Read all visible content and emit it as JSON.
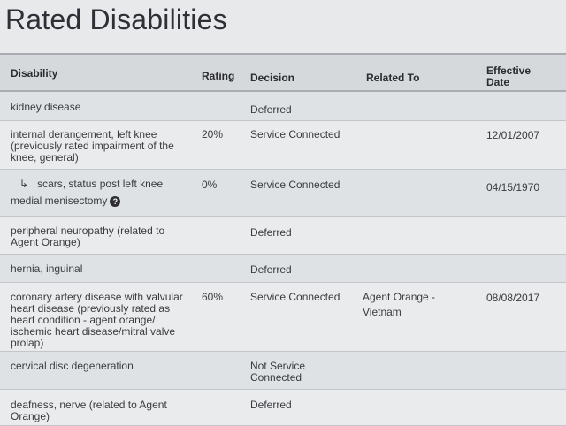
{
  "page_title": "Rated Disabilities",
  "table": {
    "headers": {
      "disability": "Disability",
      "rating": "Rating",
      "decision": "Decision",
      "related_to": "Related To",
      "effective_date": "Effective\nDate"
    },
    "rows": [
      {
        "disability": "kidney disease",
        "rating": "",
        "decision": "Deferred",
        "related_to": "",
        "effective_date": ""
      },
      {
        "disability": "internal derangement, left knee (previously rated impairment of the knee, general)",
        "rating": "20%",
        "decision": "Service Connected",
        "related_to": "",
        "effective_date": "12/01/2007"
      },
      {
        "disability_line1": "scars, status post left knee",
        "disability_line2": "medial menisectomy",
        "child_marker": "↳",
        "help_icon": "question-circle-icon",
        "rating": "0%",
        "decision": "Service Connected",
        "related_to": "",
        "effective_date": "04/15/1970"
      },
      {
        "disability": "peripheral neuropathy (related to Agent Orange)",
        "rating": "",
        "decision": "Deferred",
        "related_to": "",
        "effective_date": ""
      },
      {
        "disability": "hernia, inguinal",
        "rating": "",
        "decision": "Deferred",
        "related_to": "",
        "effective_date": ""
      },
      {
        "disability": "coronary artery disease with valvular heart disease (previously rated as heart condition - agent orange/ ischemic heart disease/mitral valve prolap)",
        "rating": "60%",
        "decision": "Service Connected",
        "related_to": "Agent Orange - Vietnam",
        "effective_date": "08/08/2017"
      },
      {
        "disability": "cervical disc degeneration",
        "rating": "",
        "decision": "Not Service Connected",
        "related_to": "",
        "effective_date": ""
      },
      {
        "disability": "deafness, nerve (related to Agent Orange)",
        "rating": "",
        "decision": "Deferred",
        "related_to": "",
        "effective_date": ""
      }
    ]
  }
}
